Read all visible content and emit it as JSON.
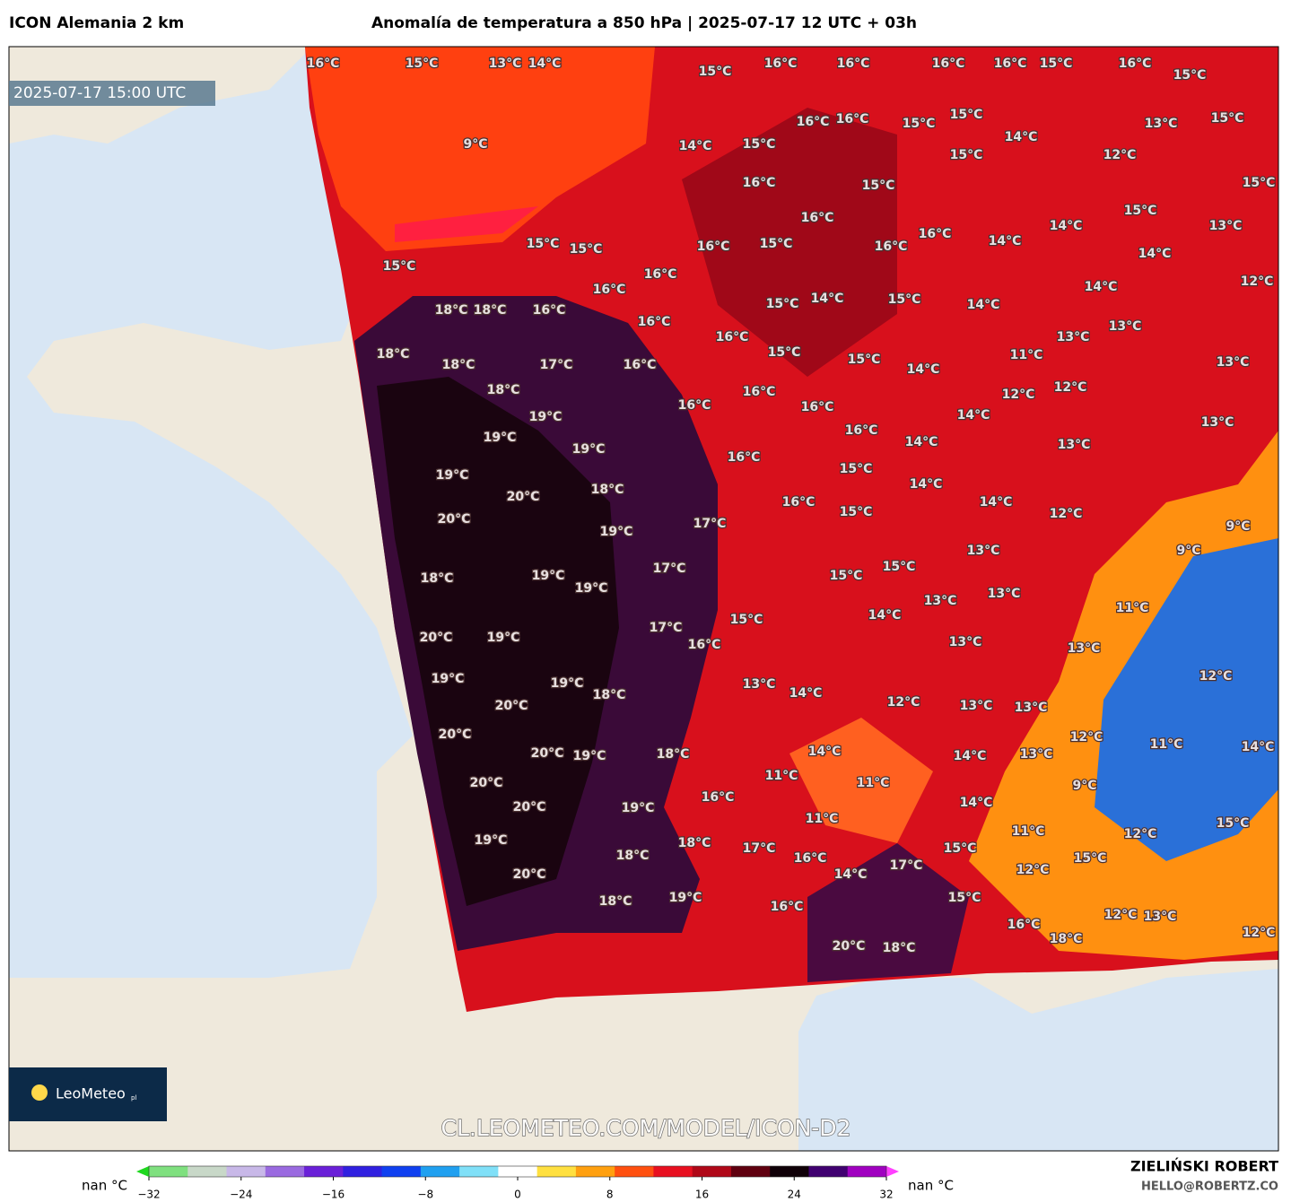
{
  "header": {
    "model": "ICON Alemania 2 km",
    "title": "Anomalía de temperatura a 850 hPa | 2025-07-17 12 UTC + 03h"
  },
  "timestamp": "2025-07-17 15:00 UTC",
  "watermark": "CL.LEOMETEO.COM/MODEL/ICON-D2",
  "logo": {
    "text": "LeoMeteo",
    "suffix": "pl"
  },
  "labels": [
    "16°C",
    "15°C",
    "13°C",
    "14°C",
    "15°C",
    "16°C",
    "16°C",
    "16°C",
    "16°C",
    "15°C",
    "16°C",
    "15°C",
    "9°C",
    "16°C",
    "16°C",
    "15°C",
    "15°C",
    "13°C",
    "15°C",
    "14°C",
    "15°C",
    "14°C",
    "15°C",
    "12°C",
    "16°C",
    "15°C",
    "15°C",
    "16°C",
    "15°C",
    "14°C",
    "13°C",
    "15°C",
    "15°C",
    "16°C",
    "15°C",
    "16°C",
    "16°C",
    "14°C",
    "14°C",
    "15°C",
    "16°C",
    "16°C",
    "14°C",
    "12°C",
    "18°C",
    "18°C",
    "16°C",
    "15°C",
    "14°C",
    "15°C",
    "14°C",
    "16°C",
    "16°C",
    "13°C",
    "13°C",
    "18°C",
    "18°C",
    "17°C",
    "16°C",
    "15°C",
    "15°C",
    "14°C",
    "11°C",
    "13°C",
    "18°C",
    "16°C",
    "12°C",
    "12°C",
    "19°C",
    "16°C",
    "16°C",
    "14°C",
    "13°C",
    "19°C",
    "16°C",
    "14°C",
    "13°C",
    "19°C",
    "16°C",
    "15°C",
    "19°C",
    "14°C",
    "20°C",
    "18°C",
    "16°C",
    "15°C",
    "14°C",
    "12°C",
    "20°C",
    "17°C",
    "19°C",
    "9°C",
    "13°C",
    "9°C",
    "17°C",
    "15°C",
    "18°C",
    "19°C",
    "19°C",
    "15°C",
    "13°C",
    "13°C",
    "20°C",
    "19°C",
    "17°C",
    "15°C",
    "14°C",
    "11°C",
    "16°C",
    "13°C",
    "13°C",
    "19°C",
    "19°C",
    "18°C",
    "13°C",
    "14°C",
    "12°C",
    "13°C",
    "13°C",
    "12°C",
    "20°C",
    "20°C",
    "20°C",
    "19°C",
    "18°C",
    "14°C",
    "14°C",
    "13°C",
    "12°C",
    "11°C",
    "14°C",
    "20°C",
    "11°C",
    "11°C",
    "16°C",
    "14°C",
    "9°C",
    "20°C",
    "19°C",
    "11°C",
    "15°C",
    "19°C",
    "18°C",
    "17°C",
    "11°C",
    "12°C",
    "16°C",
    "15°C",
    "15°C",
    "18°C",
    "14°C",
    "17°C",
    "12°C",
    "20°C",
    "18°C",
    "19°C",
    "16°C",
    "15°C",
    "16°C",
    "12°C",
    "13°C",
    "12°C",
    "20°C",
    "18°C",
    "18°C"
  ],
  "colorbar": {
    "min_label": "nan °C",
    "max_label": "nan °C",
    "range": [
      -32,
      32
    ],
    "ticks": [
      {
        "value": -32,
        "label": "−32"
      },
      {
        "value": -24,
        "label": "−24"
      },
      {
        "value": -16,
        "label": "−16"
      },
      {
        "value": -8,
        "label": "−8"
      },
      0,
      8,
      16,
      24,
      32
    ],
    "colors": [
      "#1fd81f",
      "#7fe07f",
      "#c8d8c8",
      "#c8b8e8",
      "#9a6ae0",
      "#6a20d8",
      "#3020e0",
      "#1040f0",
      "#20a0f0",
      "#80e0f8",
      "#ffffff",
      "#ffe040",
      "#ffa010",
      "#ff5010",
      "#e81020",
      "#b00818",
      "#600010",
      "#100008",
      "#400070",
      "#a000c0",
      "#ff40ff"
    ]
  },
  "footer": {
    "author": "ZIELIŃSKI ROBERT",
    "email": "HELLO@ROBERTZ.CO"
  }
}
